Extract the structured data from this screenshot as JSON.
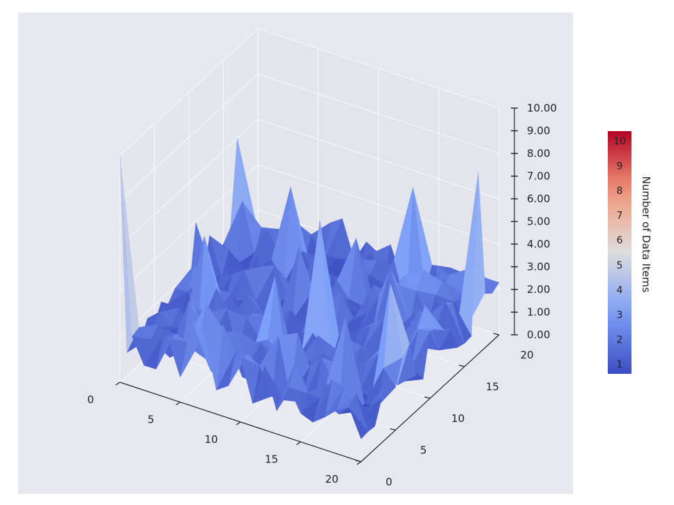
{
  "chart_data": {
    "type": "surface3d",
    "title": "",
    "colormap": "coolwarm",
    "x_ticks": [
      "0",
      "5",
      "10",
      "15",
      "20"
    ],
    "y_ticks": [
      "0",
      "5",
      "10",
      "15",
      "20"
    ],
    "z_ticks": [
      "0.00",
      "1.00",
      "2.00",
      "3.00",
      "4.00",
      "5.00",
      "6.00",
      "7.00",
      "8.00",
      "9.00",
      "10.00"
    ],
    "xlim": [
      0,
      20
    ],
    "ylim": [
      0,
      20
    ],
    "zlim": [
      0,
      10
    ],
    "colorbar": {
      "label": "Number of Data Items",
      "ticks": [
        "1",
        "2",
        "3",
        "4",
        "5",
        "6",
        "7",
        "8",
        "9",
        "10"
      ],
      "range": [
        1,
        10
      ]
    },
    "peaks": [
      {
        "x": 0,
        "y": 0,
        "z": 10
      },
      {
        "x": 0,
        "y": 17,
        "z": 6
      },
      {
        "x": 20,
        "y": 17,
        "z": 8
      },
      {
        "x": 12,
        "y": 8,
        "z": 7
      },
      {
        "x": 14,
        "y": 18,
        "z": 6
      },
      {
        "x": 19,
        "y": 6,
        "z": 6
      },
      {
        "x": 3,
        "y": 7,
        "z": 5
      },
      {
        "x": 5,
        "y": 16,
        "z": 5
      },
      {
        "x": 10,
        "y": 5,
        "z": 5
      },
      {
        "x": 17,
        "y": 3,
        "z": 5
      },
      {
        "x": 6,
        "y": 2,
        "z": 4
      },
      {
        "x": 8,
        "y": 12,
        "z": 4
      },
      {
        "x": 15,
        "y": 13,
        "z": 4
      }
    ],
    "background_level": [
      1,
      3
    ],
    "colors": {
      "low": "#3b4cc0",
      "mid": "#dddddd",
      "high": "#b40426",
      "panel": "#e6e7ef"
    }
  }
}
